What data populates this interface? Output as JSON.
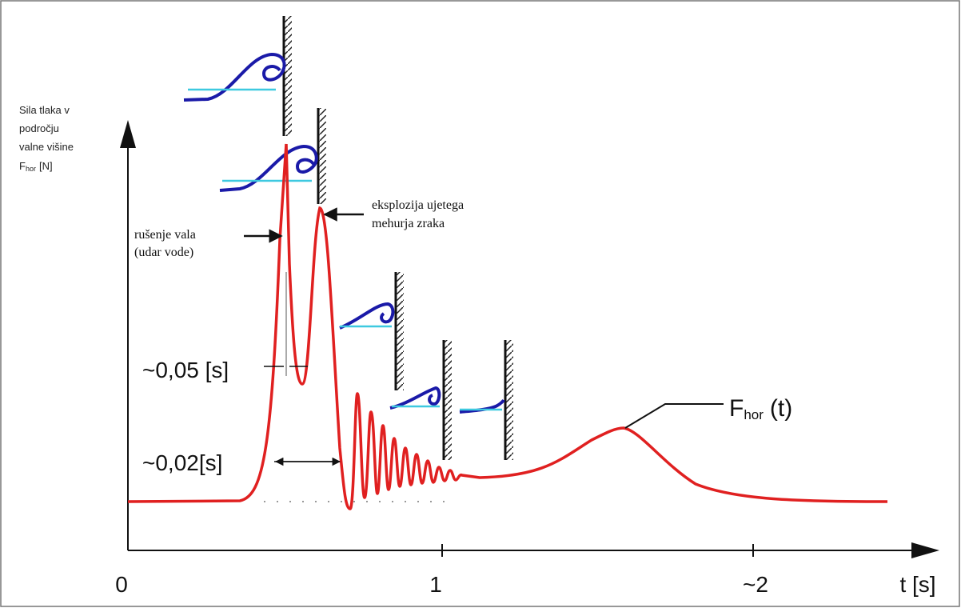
{
  "y_axis_label": {
    "lines": [
      "Sila tlaka v",
      "področju",
      "valne višine"
    ],
    "symbol": "F",
    "subscript": "hor",
    "unit": "[N]"
  },
  "annotations": {
    "breaking": [
      "rušenje vala",
      "(udar vode)"
    ],
    "explosion": [
      "eksplozija ujetega",
      "mehurja zraka"
    ],
    "interval_1": "~0,05 [s]",
    "interval_2": "~0,02[s]"
  },
  "curve_label": {
    "symbol": "F",
    "subscript": "hor",
    "suffix": "(t)"
  },
  "x_axis": {
    "ticks": [
      "0",
      "1",
      "~2"
    ],
    "label": "t [s]"
  }
}
